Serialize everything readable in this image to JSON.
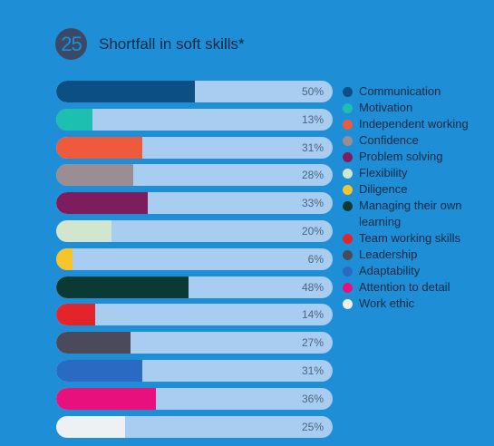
{
  "header": {
    "badge": "25",
    "title": "Shortfall in soft skills*"
  },
  "chart_data": {
    "type": "bar",
    "orientation": "horizontal",
    "title": "Shortfall in soft skills*",
    "xlim": [
      0,
      100
    ],
    "legend_position": "right",
    "categories": [
      "Communication",
      "Motivation",
      "Independent working",
      "Confidence",
      "Problem solving",
      "Flexibility",
      "Diligence",
      "Managing their own learning",
      "Team working skills",
      "Leadership",
      "Adaptability",
      "Attention to detail",
      "Work ethic"
    ],
    "values": [
      50,
      13,
      31,
      28,
      33,
      20,
      6,
      48,
      14,
      27,
      31,
      36,
      25
    ],
    "value_labels": [
      "50%",
      "13%",
      "31%",
      "28%",
      "33%",
      "20%",
      "6%",
      "48%",
      "14%",
      "27%",
      "31%",
      "36%",
      "25%"
    ],
    "colors": [
      "#0c4f84",
      "#1dbfb0",
      "#f05a3c",
      "#9a8e92",
      "#7d1d5e",
      "#d2e6cf",
      "#f7c52b",
      "#0b3a34",
      "#e3242b",
      "#4a4a5c",
      "#2a6ac2",
      "#e8107c",
      "#eef1f4"
    ],
    "track_color": "#a9cdf0"
  },
  "legend": {
    "items": [
      {
        "label": "Communication",
        "color": "#0c4f84"
      },
      {
        "label": "Motivation",
        "color": "#1dbfb0"
      },
      {
        "label": "Independent working",
        "color": "#f05a3c"
      },
      {
        "label": "Confidence",
        "color": "#9a8e92"
      },
      {
        "label": "Problem solving",
        "color": "#7d1d5e"
      },
      {
        "label": "Flexibility",
        "color": "#d2e6cf"
      },
      {
        "label": "Diligence",
        "color": "#f7c52b"
      },
      {
        "label": "Managing their own learning",
        "color": "#0b3a34"
      },
      {
        "label": "Team working skills",
        "color": "#e3242b"
      },
      {
        "label": "Leadership",
        "color": "#4a4a5c"
      },
      {
        "label": "Adaptability",
        "color": "#2a6ac2"
      },
      {
        "label": "Attention to detail",
        "color": "#e8107c"
      },
      {
        "label": "Work ethic",
        "color": "#eef1f4"
      }
    ]
  }
}
